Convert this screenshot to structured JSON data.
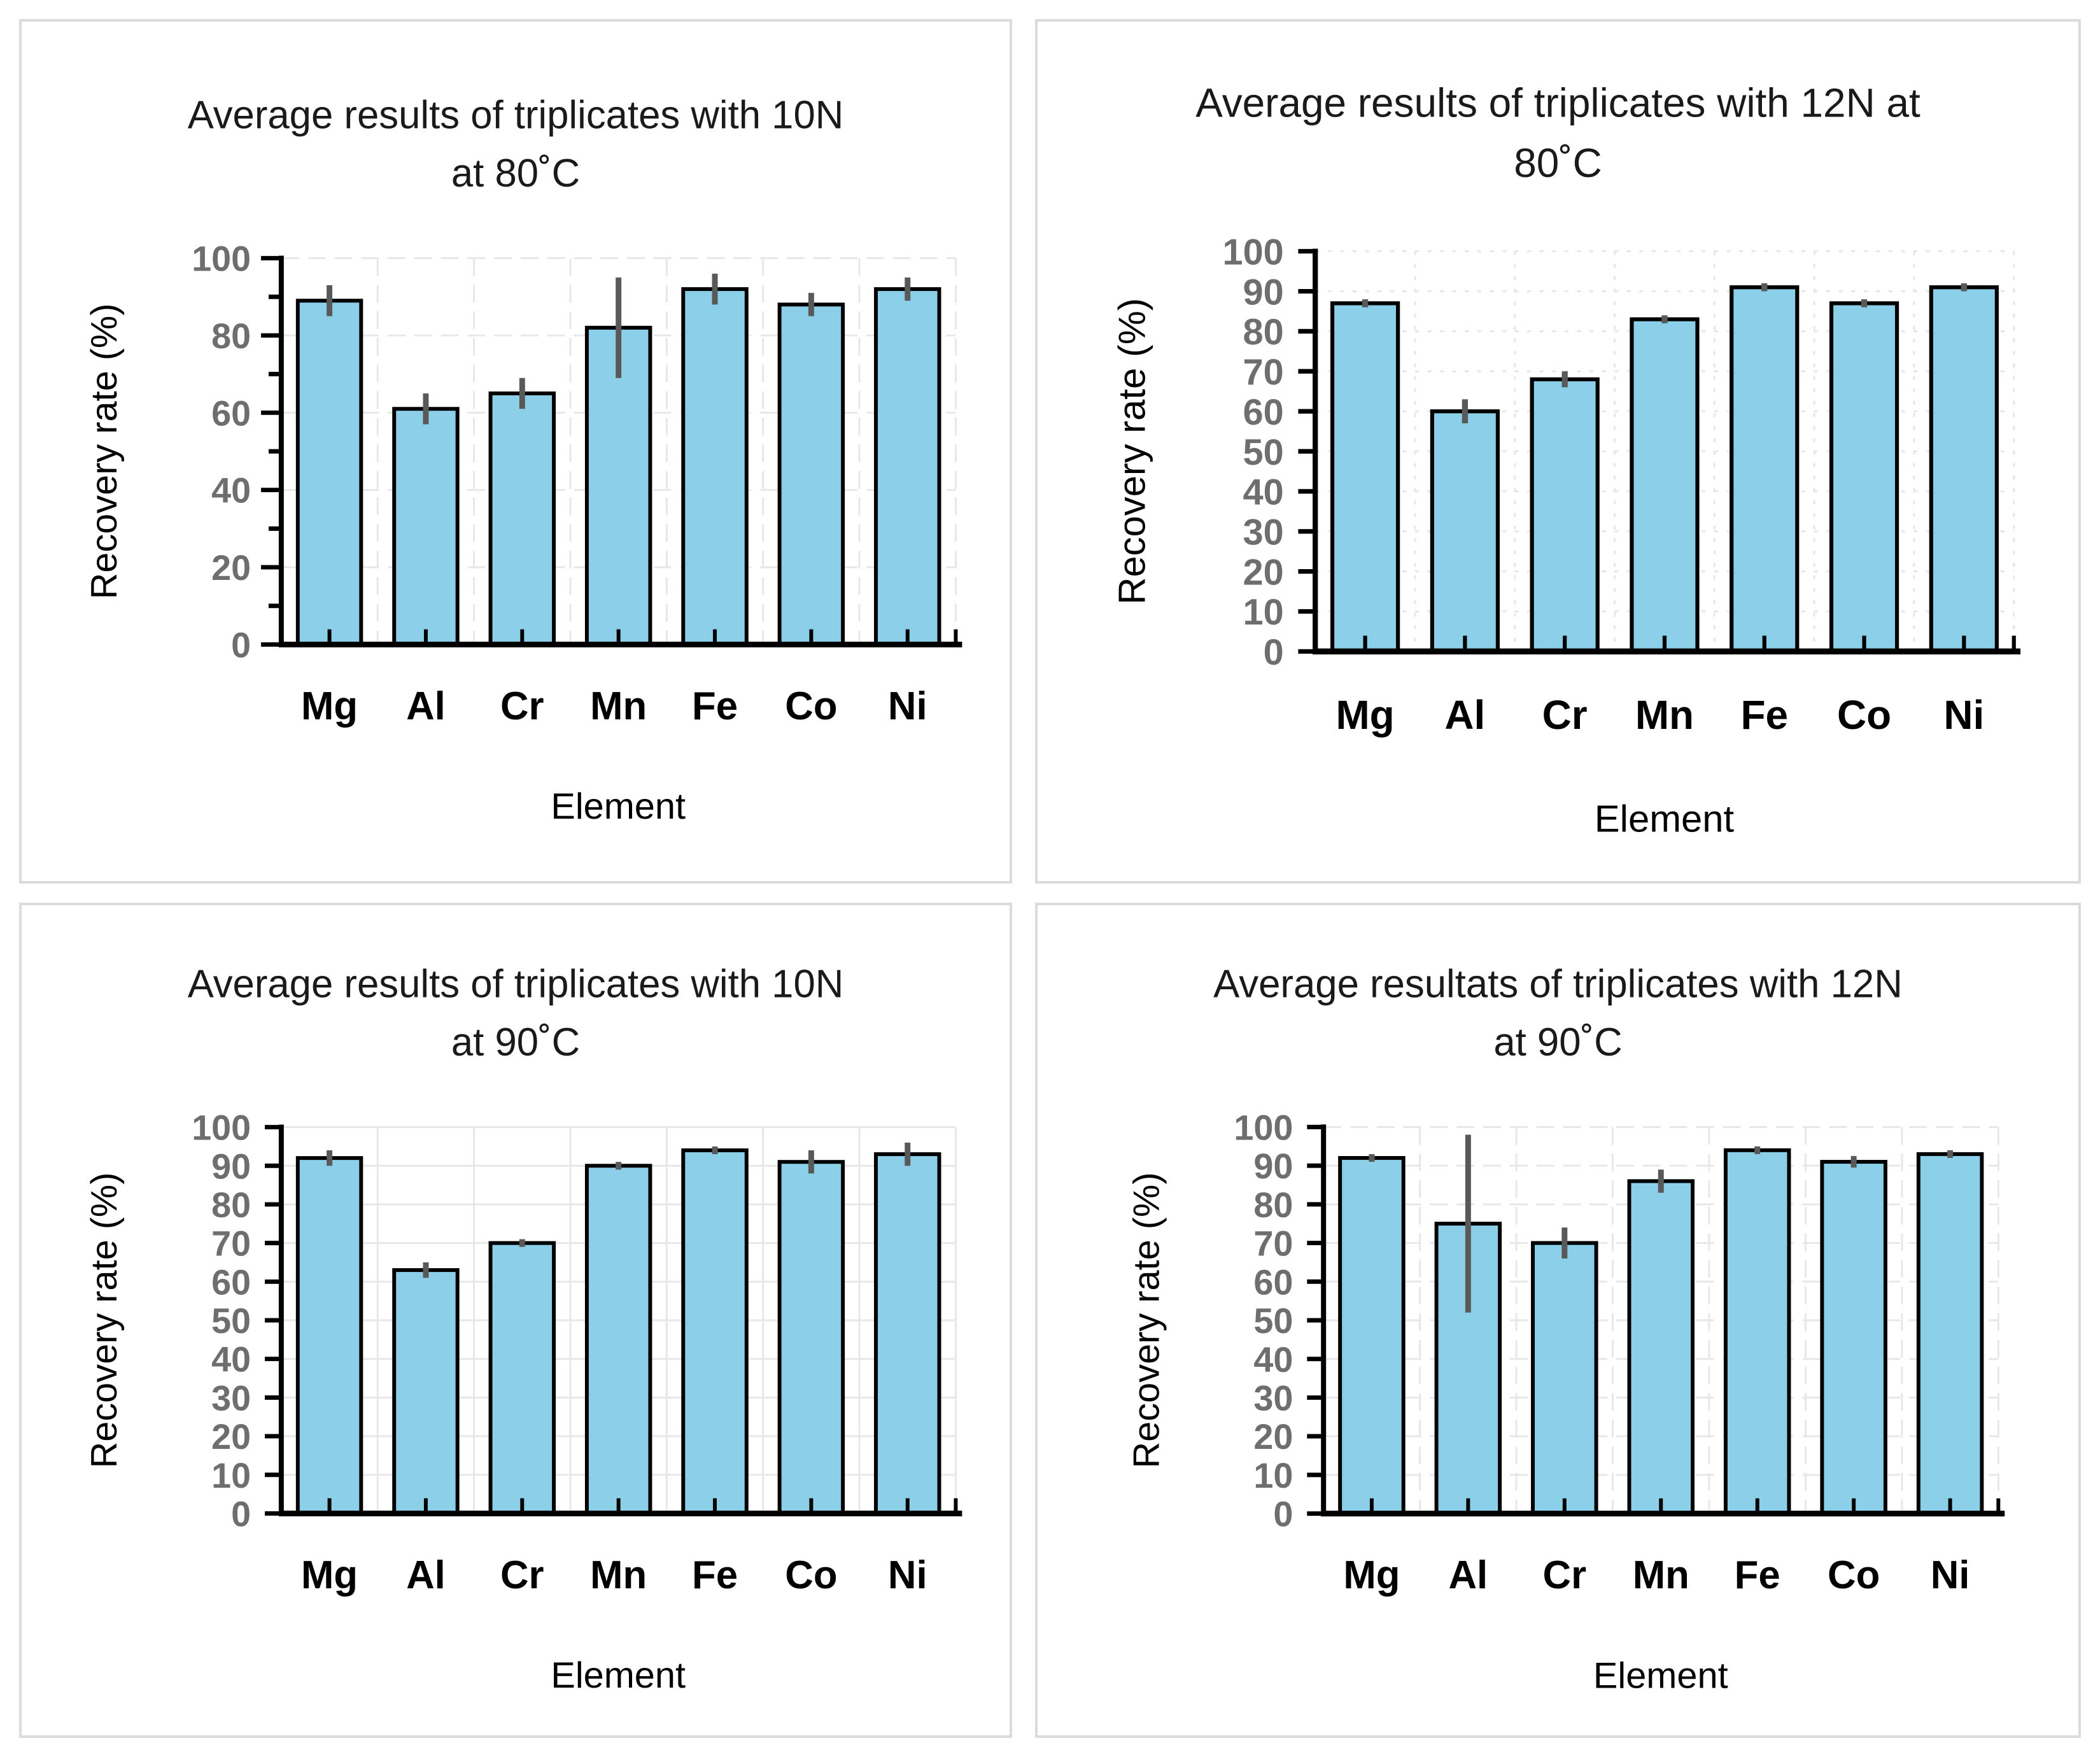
{
  "colors": {
    "bar_fill": "#8CCFE9",
    "bar_stroke": "#000000",
    "error_bar": "#595959",
    "axis": "#000000",
    "tick_label": "#6E6E6E",
    "grid": "#E7E7E7",
    "panel_border": "#DBDBDB",
    "background": "#FFFFFF"
  },
  "chart_data": [
    {
      "type": "bar",
      "title_line1": "Average results of triplicates with 10N",
      "title_line2": "at 80˚C",
      "xlabel": "Element",
      "ylabel": "Recovery rate (%)",
      "ylim": [
        0,
        100
      ],
      "y_tick_step": 10,
      "y_label_step": 20,
      "h_grid_step": 20,
      "grid_style": "dashed",
      "legend": "none",
      "categories": [
        "Mg",
        "Al",
        "Cr",
        "Mn",
        "Fe",
        "Co",
        "Ni"
      ],
      "values": [
        89,
        61,
        65,
        82,
        92,
        88,
        92
      ],
      "errors": [
        4,
        4,
        4,
        13,
        4,
        3,
        3
      ]
    },
    {
      "type": "bar",
      "title_line1": "Average results of triplicates with 12N at",
      "title_line2": "80˚C",
      "xlabel": "Element",
      "ylabel": "Recovery rate (%)",
      "ylim": [
        0,
        100
      ],
      "y_tick_step": 10,
      "y_label_step": 10,
      "h_grid_step": 10,
      "grid_style": "dotted",
      "legend": "none",
      "categories": [
        "Mg",
        "Al",
        "Cr",
        "Mn",
        "Fe",
        "Co",
        "Ni"
      ],
      "values": [
        87,
        60,
        68,
        83,
        91,
        87,
        91
      ],
      "errors": [
        1,
        3,
        2,
        1,
        1,
        1,
        1
      ]
    },
    {
      "type": "bar",
      "title_line1": "Average results of triplicates with 10N",
      "title_line2": "at 90˚C",
      "xlabel": "Element",
      "ylabel": "Recovery rate (%)",
      "ylim": [
        0,
        100
      ],
      "y_tick_step": 10,
      "y_label_step": 10,
      "h_grid_step": 10,
      "grid_style": "solid",
      "legend": "none",
      "categories": [
        "Mg",
        "Al",
        "Cr",
        "Mn",
        "Fe",
        "Co",
        "Ni"
      ],
      "values": [
        92,
        63,
        70,
        90,
        94,
        91,
        93
      ],
      "errors": [
        2,
        2,
        1,
        1,
        1,
        3,
        3
      ]
    },
    {
      "type": "bar",
      "title_line1": "Average resultats of triplicates with 12N",
      "title_line2": "at 90˚C",
      "xlabel": "Element",
      "ylabel": "Recovery rate (%)",
      "ylim": [
        0,
        100
      ],
      "y_tick_step": 10,
      "y_label_step": 10,
      "h_grid_step": 10,
      "grid_style": "dashed",
      "legend": "none",
      "categories": [
        "Mg",
        "Al",
        "Cr",
        "Mn",
        "Fe",
        "Co",
        "Ni"
      ],
      "values": [
        92,
        75,
        70,
        86,
        94,
        91,
        93
      ],
      "errors": [
        1,
        23,
        4,
        3,
        1,
        1.5,
        1
      ]
    }
  ]
}
